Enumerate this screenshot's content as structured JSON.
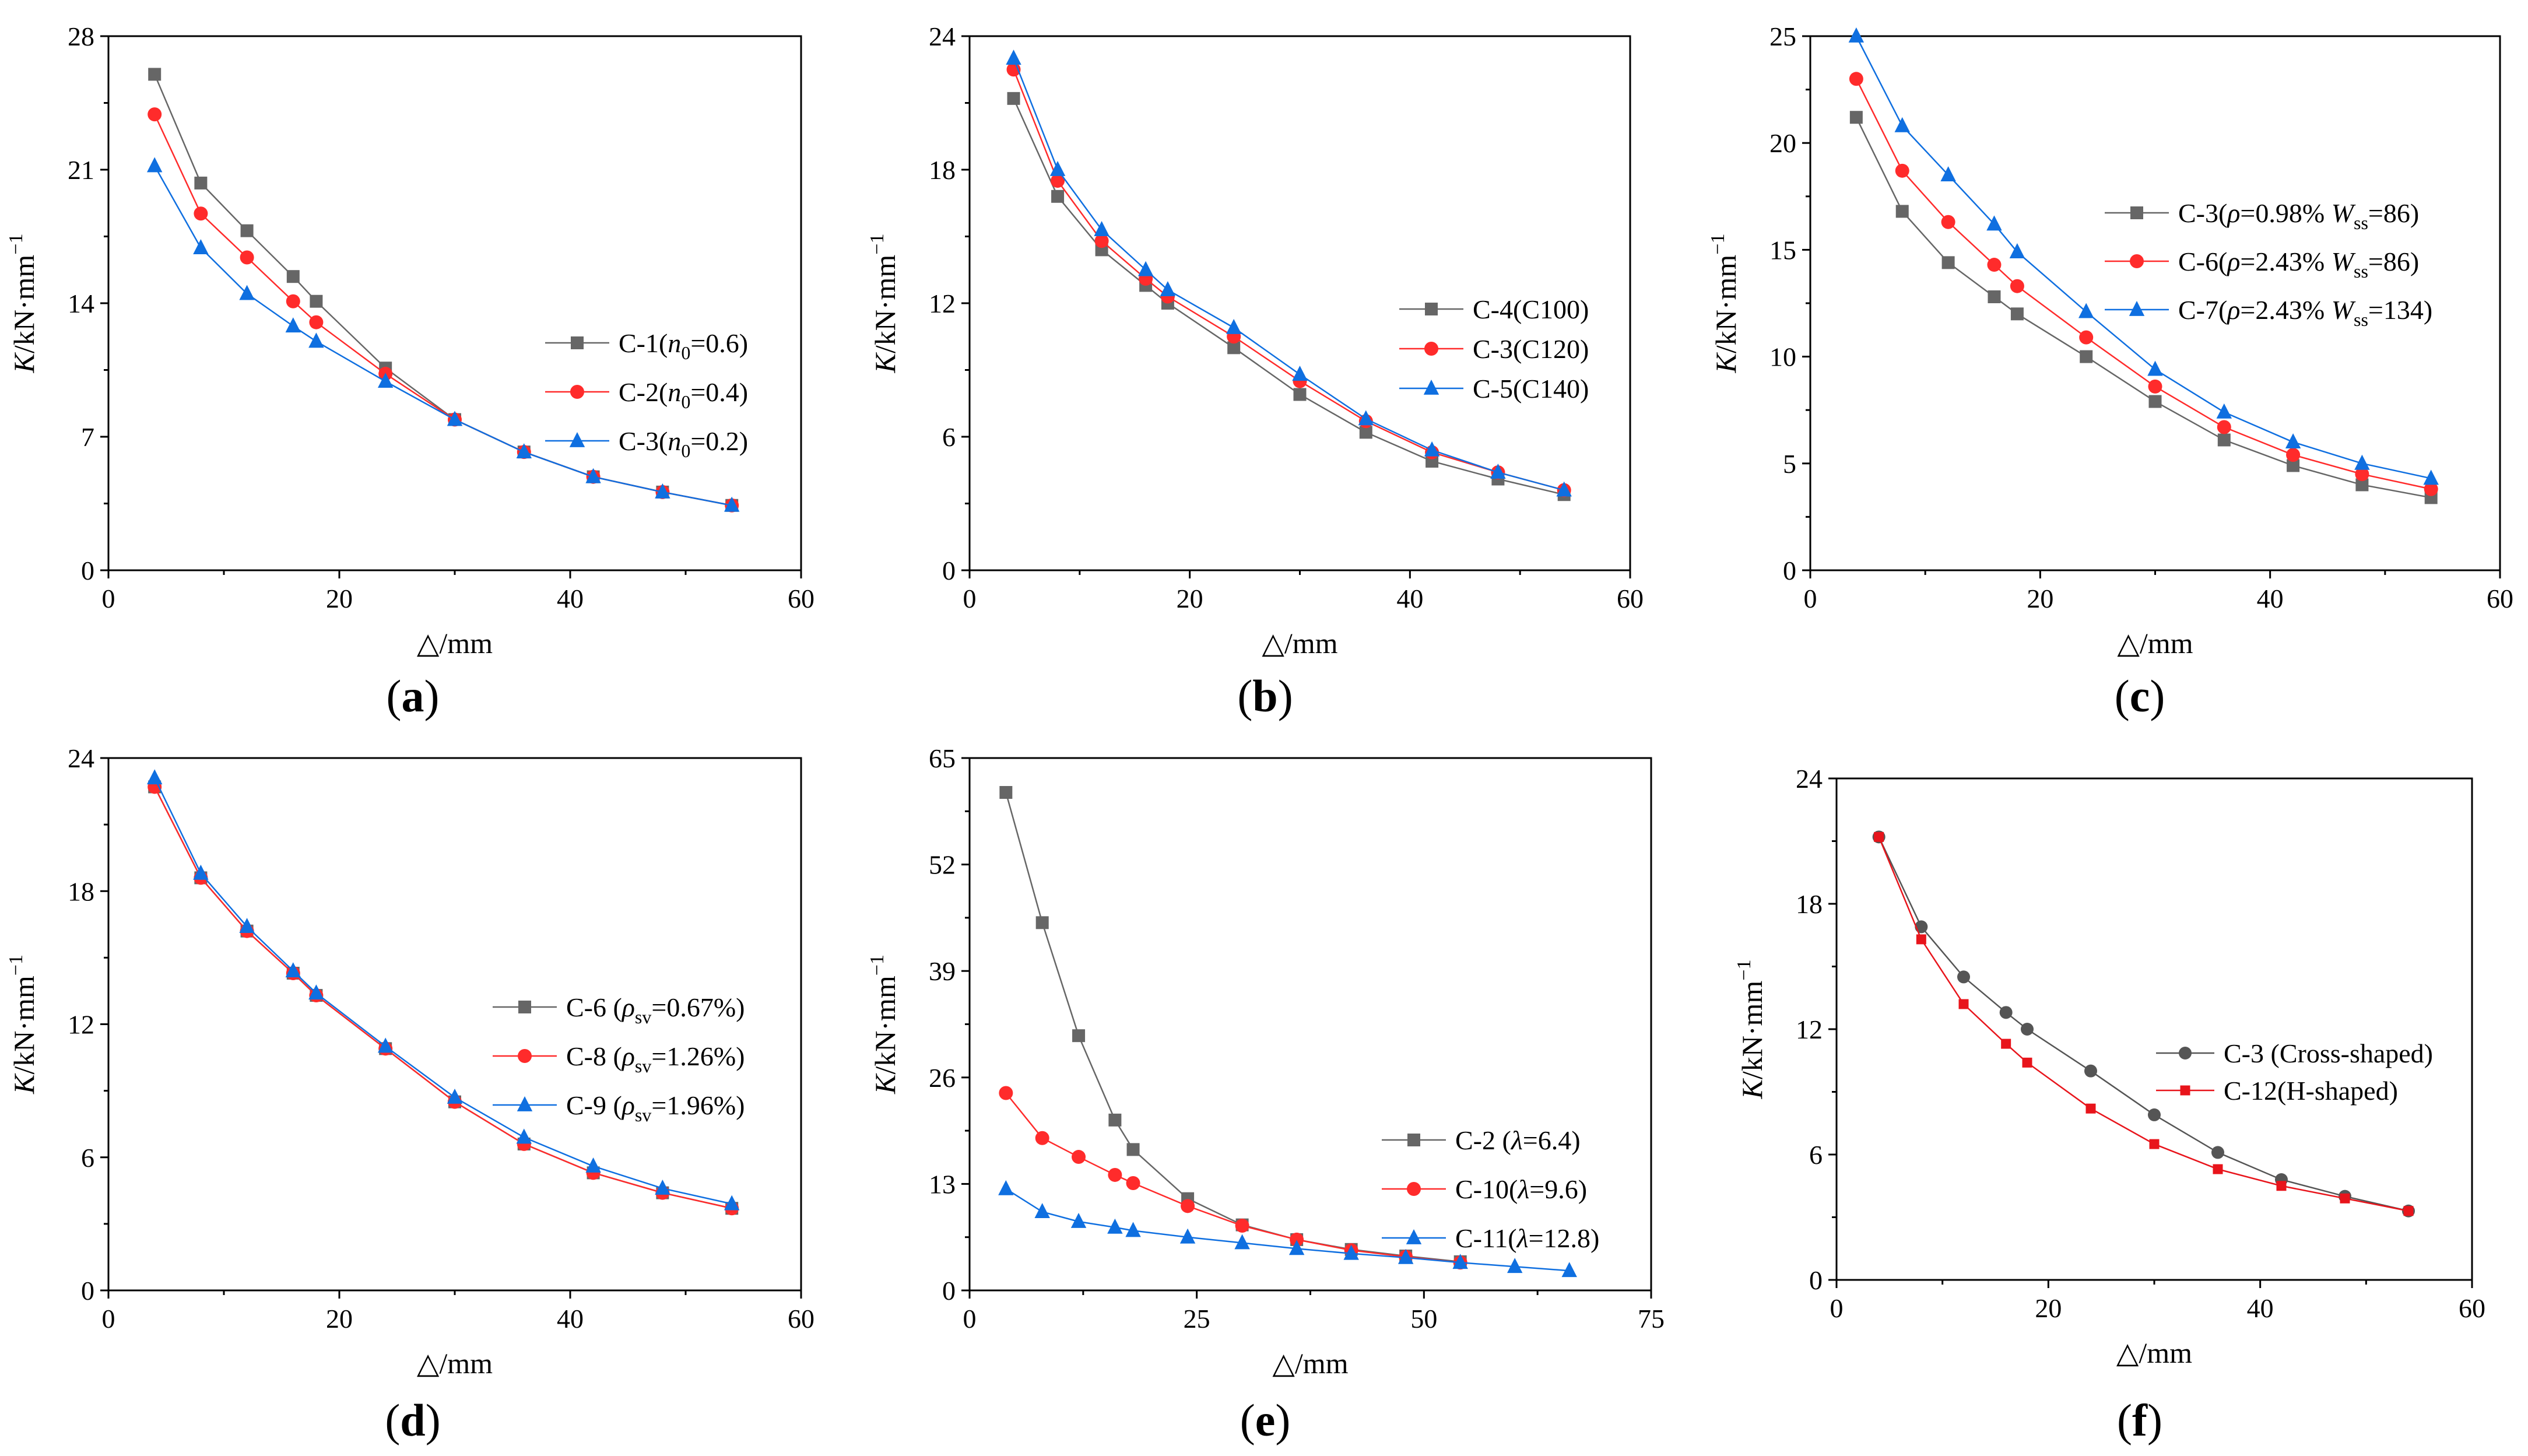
{
  "chart_data": [
    {
      "type": "line",
      "panel_label": "a",
      "xlabel": "△/mm",
      "ylabel": {
        "italic": "K",
        "rest": "/kN·mm",
        "sup": "−1"
      },
      "xlim": [
        0,
        60
      ],
      "ylim": [
        0,
        28
      ],
      "xticks": [
        0,
        20,
        40,
        60
      ],
      "yticks": [
        0,
        7,
        14,
        21,
        28
      ],
      "grid": false,
      "legend_position": "center-right",
      "series": [
        {
          "name": "C-1(n0=0.6)",
          "legend": {
            "pre": "C-1(",
            "it": "n",
            "sub": "0",
            "post": "=0.6)"
          },
          "marker": "square",
          "color": "#666666",
          "x": [
            4,
            8,
            12,
            16,
            18,
            24,
            30,
            36,
            42,
            48,
            54
          ],
          "y": [
            26.0,
            20.3,
            17.8,
            15.4,
            14.1,
            10.6,
            7.9,
            6.2,
            4.9,
            4.1,
            3.4
          ]
        },
        {
          "name": "C-2(n0=0.4)",
          "legend": {
            "pre": "C-2(",
            "it": "n",
            "sub": "0",
            "post": "=0.4)"
          },
          "marker": "circle",
          "color": "#ff2b2b",
          "x": [
            4,
            8,
            12,
            16,
            18,
            24,
            30,
            36,
            42,
            48,
            54
          ],
          "y": [
            23.9,
            18.7,
            16.4,
            14.1,
            13.0,
            10.3,
            7.9,
            6.2,
            4.9,
            4.1,
            3.4
          ]
        },
        {
          "name": "C-3(n0=0.2)",
          "legend": {
            "pre": "C-3(",
            "it": "n",
            "sub": "0",
            "post": "=0.2)"
          },
          "marker": "triangle",
          "color": "#0f6fe0",
          "x": [
            4,
            8,
            12,
            16,
            18,
            24,
            30,
            36,
            42,
            48,
            54
          ],
          "y": [
            21.2,
            16.9,
            14.5,
            12.8,
            12.0,
            9.9,
            7.9,
            6.2,
            4.9,
            4.1,
            3.4
          ]
        }
      ]
    },
    {
      "type": "line",
      "panel_label": "b",
      "xlabel": "△/mm",
      "ylabel": {
        "italic": "K",
        "rest": "/kN·mm",
        "sup": "−1"
      },
      "xlim": [
        0,
        60
      ],
      "ylim": [
        0,
        24
      ],
      "xticks": [
        0,
        20,
        40,
        60
      ],
      "yticks": [
        0,
        6,
        12,
        18,
        24
      ],
      "grid": false,
      "legend_position": "center-right",
      "series": [
        {
          "name": "C-4(C100)",
          "legend": {
            "pre": "C-4(C100)"
          },
          "marker": "square",
          "color": "#666666",
          "x": [
            4,
            8,
            12,
            16,
            18,
            24,
            30,
            36,
            42,
            48,
            54
          ],
          "y": [
            21.2,
            16.8,
            14.4,
            12.8,
            12.0,
            10.0,
            7.9,
            6.2,
            4.9,
            4.1,
            3.4
          ]
        },
        {
          "name": "C-3(C120)",
          "legend": {
            "pre": "C-3(C120)"
          },
          "marker": "circle",
          "color": "#ff2b2b",
          "x": [
            4,
            8,
            12,
            16,
            18,
            24,
            30,
            36,
            42,
            48,
            54
          ],
          "y": [
            22.5,
            17.5,
            14.8,
            13.1,
            12.3,
            10.5,
            8.5,
            6.7,
            5.3,
            4.4,
            3.6
          ]
        },
        {
          "name": "C-5(C140)",
          "legend": {
            "pre": "C-5(C140)"
          },
          "marker": "triangle",
          "color": "#0f6fe0",
          "x": [
            4,
            8,
            12,
            16,
            18,
            24,
            30,
            36,
            42,
            48,
            54
          ],
          "y": [
            23.0,
            18.0,
            15.3,
            13.5,
            12.6,
            10.9,
            8.8,
            6.8,
            5.4,
            4.4,
            3.6
          ]
        }
      ]
    },
    {
      "type": "line",
      "panel_label": "c",
      "xlabel": "△/mm",
      "ylabel": {
        "italic": "K",
        "rest": "/kN·mm",
        "sup": "−1"
      },
      "xlim": [
        0,
        60
      ],
      "ylim": [
        0,
        25
      ],
      "xticks": [
        0,
        20,
        40,
        60
      ],
      "yticks": [
        0,
        5,
        10,
        15,
        20,
        25
      ],
      "grid": false,
      "legend_position": "center-right",
      "series": [
        {
          "name": "C-3(ρ=0.98% Wss=86)",
          "legend": {
            "pre": "C-3(",
            "it": "ρ",
            "mid": "=0.98% ",
            "it2": "W",
            "sub2": "ss",
            "post": "=86)"
          },
          "marker": "square",
          "color": "#666666",
          "x": [
            4,
            8,
            12,
            16,
            18,
            24,
            30,
            36,
            42,
            48,
            54
          ],
          "y": [
            21.2,
            16.8,
            14.4,
            12.8,
            12.0,
            10.0,
            7.9,
            6.1,
            4.9,
            4.0,
            3.4
          ]
        },
        {
          "name": "C-6(ρ=2.43% Wss=86)",
          "legend": {
            "pre": "C-6(",
            "it": "ρ",
            "mid": "=2.43% ",
            "it2": "W",
            "sub2": "ss",
            "post": "=86)"
          },
          "marker": "circle",
          "color": "#ff2b2b",
          "x": [
            4,
            8,
            12,
            16,
            18,
            24,
            30,
            36,
            42,
            48,
            54
          ],
          "y": [
            23.0,
            18.7,
            16.3,
            14.3,
            13.3,
            10.9,
            8.6,
            6.7,
            5.4,
            4.5,
            3.8
          ]
        },
        {
          "name": "C-7(ρ=2.43% Wss=134)",
          "legend": {
            "pre": "C-7(",
            "it": "ρ",
            "mid": "=2.43% ",
            "it2": "W",
            "sub2": "ss",
            "post": "=134)"
          },
          "marker": "triangle",
          "color": "#0f6fe0",
          "x": [
            4,
            8,
            12,
            16,
            18,
            24,
            30,
            36,
            42,
            48,
            54
          ],
          "y": [
            25.0,
            20.8,
            18.5,
            16.2,
            14.9,
            12.1,
            9.4,
            7.4,
            6.0,
            5.0,
            4.3
          ]
        }
      ]
    },
    {
      "type": "line",
      "panel_label": "d",
      "xlabel": "△/mm",
      "ylabel": {
        "italic": "K",
        "rest": "/kN·mm",
        "sup": "−1"
      },
      "xlim": [
        0,
        60
      ],
      "ylim": [
        0,
        24
      ],
      "xticks": [
        0,
        20,
        40,
        60
      ],
      "yticks": [
        0,
        6,
        12,
        18,
        24
      ],
      "grid": false,
      "legend_position": "center-right",
      "series": [
        {
          "name": "C-6 (ρsv=0.67%)",
          "legend": {
            "pre": "C-6 (",
            "it": "ρ",
            "sub": "sv",
            "post": "=0.67%)"
          },
          "marker": "square",
          "color": "#666666",
          "x": [
            4,
            8,
            12,
            16,
            18,
            24,
            30,
            36,
            42,
            48,
            54
          ],
          "y": [
            22.7,
            18.6,
            16.2,
            14.3,
            13.3,
            10.9,
            8.5,
            6.6,
            5.3,
            4.4,
            3.7
          ]
        },
        {
          "name": "C-8 (ρsv=1.26%)",
          "legend": {
            "pre": "C-8 (",
            "it": "ρ",
            "sub": "sv",
            "post": "=1.26%)"
          },
          "marker": "circle",
          "color": "#ff2b2b",
          "x": [
            4,
            8,
            12,
            16,
            18,
            24,
            30,
            36,
            42,
            48,
            54
          ],
          "y": [
            22.7,
            18.6,
            16.2,
            14.3,
            13.3,
            10.9,
            8.5,
            6.6,
            5.3,
            4.4,
            3.7
          ]
        },
        {
          "name": "C-9 (ρsv=1.96%)",
          "legend": {
            "pre": "C-9 (",
            "it": "ρ",
            "sub": "sv",
            "post": "=1.96%)"
          },
          "marker": "triangle",
          "color": "#0f6fe0",
          "x": [
            4,
            8,
            12,
            16,
            18,
            24,
            30,
            36,
            42,
            48,
            54
          ],
          "y": [
            23.1,
            18.8,
            16.4,
            14.4,
            13.4,
            11.0,
            8.7,
            6.9,
            5.6,
            4.6,
            3.9
          ]
        }
      ]
    },
    {
      "type": "line",
      "panel_label": "e",
      "xlabel": "△/mm",
      "ylabel": {
        "italic": "K",
        "rest": "/kN·mm",
        "sup": "−1"
      },
      "xlim": [
        0,
        75
      ],
      "ylim": [
        0,
        65
      ],
      "xticks": [
        0,
        25,
        50,
        75
      ],
      "yticks": [
        0,
        13,
        26,
        39,
        52,
        65
      ],
      "grid": false,
      "legend_position": "bottom-right",
      "series": [
        {
          "name": "C-2  (λ=6.4)",
          "legend": {
            "pre": "C-2  (",
            "it": "λ",
            "post": "=6.4)"
          },
          "marker": "square",
          "color": "#666666",
          "x": [
            4,
            8,
            12,
            16,
            18,
            24,
            30,
            36,
            42,
            48,
            54
          ],
          "y": [
            60.8,
            44.9,
            31.1,
            20.8,
            17.2,
            11.2,
            8.0,
            6.2,
            5.0,
            4.2,
            3.5
          ]
        },
        {
          "name": "C-10(λ=9.6)",
          "legend": {
            "pre": "C-10(",
            "it": "λ",
            "post": "=9.6)"
          },
          "marker": "circle",
          "color": "#ff2b2b",
          "x": [
            4,
            8,
            12,
            16,
            18,
            24,
            30,
            36,
            42,
            48,
            54
          ],
          "y": [
            24.1,
            18.6,
            16.3,
            14.1,
            13.1,
            10.3,
            7.9,
            6.2,
            4.9,
            4.1,
            3.4
          ]
        },
        {
          "name": "C-11(λ=12.8)",
          "legend": {
            "pre": "C-11(",
            "it": "λ",
            "post": "=12.8)"
          },
          "marker": "triangle",
          "color": "#0f6fe0",
          "x": [
            4,
            8,
            12,
            16,
            18,
            24,
            30,
            36,
            42,
            48,
            54,
            60,
            66
          ],
          "y": [
            12.4,
            9.6,
            8.4,
            7.7,
            7.3,
            6.5,
            5.8,
            5.1,
            4.5,
            4.0,
            3.4,
            2.9,
            2.4
          ]
        }
      ]
    },
    {
      "type": "line",
      "panel_label": "f",
      "xlabel": "△/mm",
      "ylabel": {
        "italic": "K",
        "rest": "/kN·mm",
        "sup": "−1"
      },
      "xlim": [
        0,
        60
      ],
      "ylim": [
        0,
        24
      ],
      "xticks": [
        0,
        20,
        40,
        60
      ],
      "yticks": [
        0,
        6,
        12,
        18,
        24
      ],
      "grid": false,
      "legend_position": "center-right",
      "series": [
        {
          "name": "C-3  (Cross-shaped)",
          "legend": {
            "pre": "C-3  (Cross-shaped)"
          },
          "marker": "circle",
          "color": "#555555",
          "x": [
            4,
            8,
            12,
            16,
            18,
            24,
            30,
            36,
            42,
            48,
            54
          ],
          "y": [
            21.2,
            16.9,
            14.5,
            12.8,
            12.0,
            10.0,
            7.9,
            6.1,
            4.8,
            4.0,
            3.3
          ]
        },
        {
          "name": "C-12(H-shaped)",
          "legend": {
            "pre": "C-12(H-shaped)"
          },
          "marker": "square-small",
          "color": "#e8141b",
          "x": [
            4,
            8,
            12,
            16,
            18,
            24,
            30,
            36,
            42,
            48,
            54
          ],
          "y": [
            21.2,
            16.3,
            13.2,
            11.3,
            10.4,
            8.2,
            6.5,
            5.3,
            4.5,
            3.9,
            3.3
          ]
        }
      ]
    }
  ]
}
